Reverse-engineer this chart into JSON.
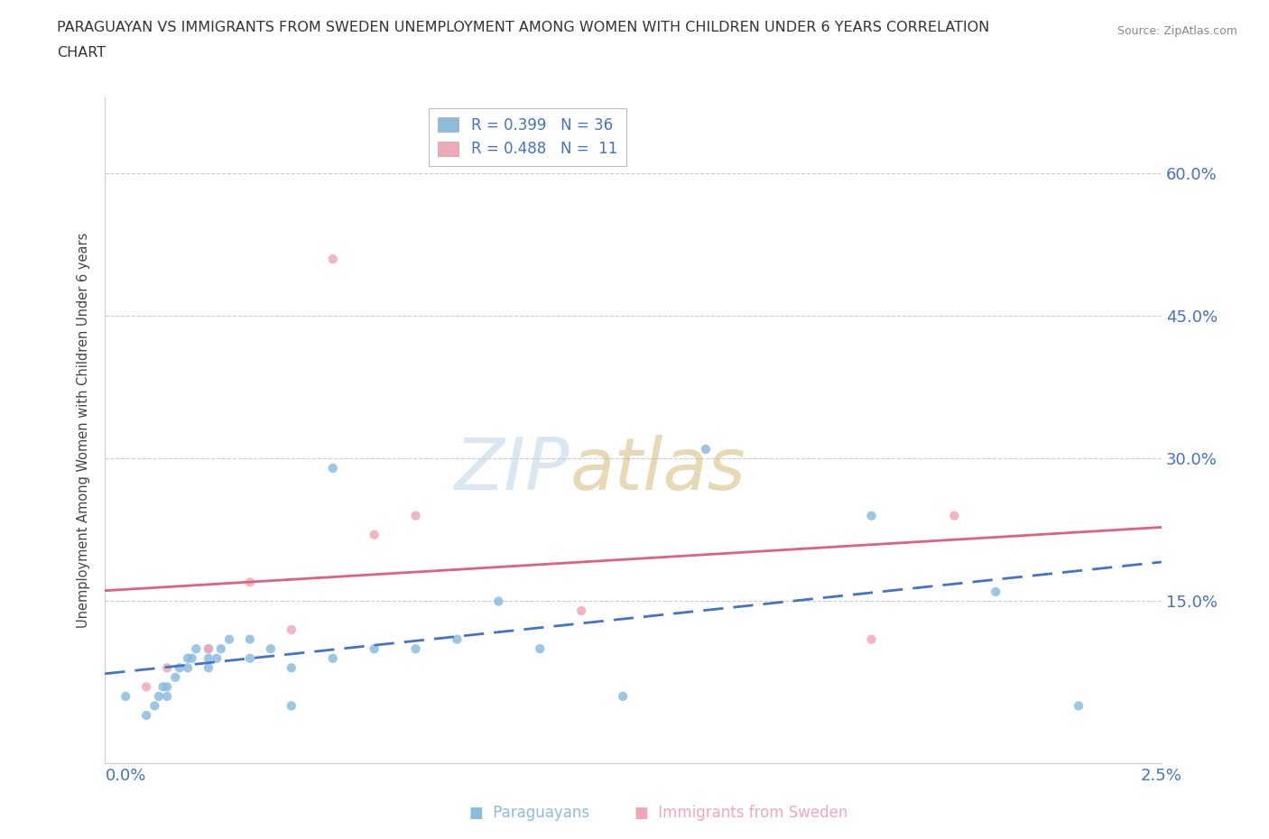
{
  "title_line1": "PARAGUAYAN VS IMMIGRANTS FROM SWEDEN UNEMPLOYMENT AMONG WOMEN WITH CHILDREN UNDER 6 YEARS CORRELATION",
  "title_line2": "CHART",
  "source": "Source: ZipAtlas.com",
  "ylabel": "Unemployment Among Women with Children Under 6 years",
  "ytick_labels": [
    "15.0%",
    "30.0%",
    "45.0%",
    "60.0%"
  ],
  "ytick_values": [
    0.15,
    0.3,
    0.45,
    0.6
  ],
  "xlim": [
    -0.0005,
    0.025
  ],
  "ylim": [
    -0.02,
    0.68
  ],
  "paraguayan_x": [
    0.0,
    0.0005,
    0.0007,
    0.0008,
    0.0009,
    0.001,
    0.001,
    0.0012,
    0.0013,
    0.0015,
    0.0015,
    0.0016,
    0.0017,
    0.002,
    0.002,
    0.002,
    0.0022,
    0.0023,
    0.0025,
    0.003,
    0.003,
    0.0035,
    0.004,
    0.004,
    0.005,
    0.005,
    0.006,
    0.007,
    0.008,
    0.009,
    0.01,
    0.012,
    0.014,
    0.018,
    0.021,
    0.023
  ],
  "paraguayan_y": [
    0.05,
    0.03,
    0.04,
    0.05,
    0.06,
    0.05,
    0.06,
    0.07,
    0.08,
    0.08,
    0.09,
    0.09,
    0.1,
    0.08,
    0.09,
    0.1,
    0.09,
    0.1,
    0.11,
    0.09,
    0.11,
    0.1,
    0.04,
    0.08,
    0.09,
    0.29,
    0.1,
    0.1,
    0.11,
    0.15,
    0.1,
    0.05,
    0.31,
    0.24,
    0.16,
    0.04
  ],
  "sweden_x": [
    0.0005,
    0.001,
    0.002,
    0.003,
    0.004,
    0.005,
    0.006,
    0.007,
    0.011,
    0.018,
    0.02
  ],
  "sweden_y": [
    0.06,
    0.08,
    0.1,
    0.17,
    0.12,
    0.51,
    0.22,
    0.24,
    0.14,
    0.11,
    0.24
  ],
  "paraguayan_color": "#8bbcde",
  "sweden_color": "#f0a8b8",
  "trend_paraguayan_color": "#4472c4",
  "trend_sweden_color": "#e06080",
  "background_color": "#ffffff",
  "grid_color": "#cccccc",
  "legend_label1": "R = 0.399   N = 36",
  "legend_label2": "R = 0.488   N =  11",
  "bottom_legend_paraguayan": "Paraguayans",
  "bottom_legend_sweden": "Immigrants from Sweden",
  "watermark_zip_color": "#b8d4e8",
  "watermark_atlas_color": "#d4b87a"
}
